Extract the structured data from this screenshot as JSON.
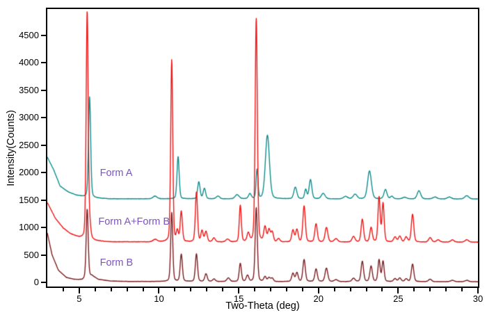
{
  "figure": {
    "background": "#ffffff",
    "axis_color": "#000000",
    "tick_label_color": "#000000"
  },
  "chart_data": {
    "type": "line",
    "title": "",
    "xlabel": "Two-Theta (deg)",
    "ylabel": "Intensity(Counts)",
    "xlim": [
      3,
      30
    ],
    "ylim": [
      -75,
      4975
    ],
    "x_major_ticks": [
      5,
      10,
      15,
      20,
      25,
      30
    ],
    "x_minor_step": 1,
    "y_major_ticks": [
      0,
      500,
      1000,
      1500,
      2000,
      2500,
      3000,
      3500,
      4000,
      4500
    ],
    "grid": false,
    "legend_position": "none",
    "annotations": [
      {
        "text": "Form A",
        "x": 6.3,
        "y": 1990,
        "color": "#7d53c1"
      },
      {
        "text": "Form A+Form B",
        "x": 6.2,
        "y": 1100,
        "color": "#7d53c1"
      },
      {
        "text": "Form B",
        "x": 6.3,
        "y": 355,
        "color": "#7d53c1"
      }
    ],
    "series": [
      {
        "name": "Form A",
        "color": "#0f8b8b",
        "line_width": 1.4,
        "noise": 5,
        "seed": 7,
        "background_points": [
          [
            3,
            2280
          ],
          [
            3.4,
            2050
          ],
          [
            3.8,
            1755
          ],
          [
            4.3,
            1650
          ],
          [
            4.8,
            1590
          ],
          [
            5.4,
            1552
          ],
          [
            6,
            1535
          ],
          [
            7,
            1522
          ],
          [
            30,
            1518
          ]
        ],
        "peaks": [
          [
            5.65,
            1835,
            0.16
          ],
          [
            9.75,
            50,
            0.3
          ],
          [
            11.2,
            770,
            0.16
          ],
          [
            12.5,
            310,
            0.18
          ],
          [
            12.85,
            190,
            0.18
          ],
          [
            13.7,
            50,
            0.25
          ],
          [
            14.9,
            75,
            0.3
          ],
          [
            15.7,
            90,
            0.2
          ],
          [
            16.15,
            530,
            0.14
          ],
          [
            16.8,
            1160,
            0.3
          ],
          [
            18.55,
            210,
            0.22
          ],
          [
            19.2,
            170,
            0.16
          ],
          [
            19.5,
            350,
            0.2
          ],
          [
            20.3,
            100,
            0.28
          ],
          [
            21.7,
            45,
            0.3
          ],
          [
            22.3,
            85,
            0.28
          ],
          [
            23.2,
            510,
            0.28
          ],
          [
            24.2,
            170,
            0.22
          ],
          [
            24.6,
            45,
            0.22
          ],
          [
            25.4,
            30,
            0.3
          ],
          [
            26.3,
            150,
            0.26
          ],
          [
            27.3,
            35,
            0.3
          ],
          [
            28.2,
            35,
            0.3
          ],
          [
            29.3,
            60,
            0.3
          ]
        ]
      },
      {
        "name": "Form A+Form B",
        "color": "#f01212",
        "line_width": 1.4,
        "noise": 5,
        "seed": 13,
        "background_points": [
          [
            3,
            1455
          ],
          [
            3.5,
            1170
          ],
          [
            4,
            990
          ],
          [
            4.5,
            880
          ],
          [
            5,
            815
          ],
          [
            5.5,
            780
          ],
          [
            6,
            755
          ],
          [
            7,
            740
          ],
          [
            30,
            733
          ]
        ],
        "peaks": [
          [
            5.5,
            4160,
            0.15
          ],
          [
            5.67,
            200,
            0.14
          ],
          [
            9.75,
            45,
            0.3
          ],
          [
            10.8,
            3310,
            0.15
          ],
          [
            11.15,
            190,
            0.15
          ],
          [
            11.4,
            545,
            0.16
          ],
          [
            12.35,
            905,
            0.16
          ],
          [
            12.7,
            200,
            0.16
          ],
          [
            12.95,
            185,
            0.18
          ],
          [
            13.45,
            70,
            0.2
          ],
          [
            14.3,
            50,
            0.25
          ],
          [
            15.1,
            665,
            0.15
          ],
          [
            15.6,
            150,
            0.18
          ],
          [
            16.1,
            4065,
            0.16
          ],
          [
            16.65,
            265,
            0.18
          ],
          [
            16.9,
            215,
            0.18
          ],
          [
            17.1,
            175,
            0.18
          ],
          [
            17.5,
            60,
            0.2
          ],
          [
            18.4,
            215,
            0.18
          ],
          [
            18.65,
            225,
            0.18
          ],
          [
            19.1,
            655,
            0.18
          ],
          [
            19.85,
            330,
            0.18
          ],
          [
            20.5,
            265,
            0.2
          ],
          [
            21.1,
            60,
            0.25
          ],
          [
            22.2,
            100,
            0.22
          ],
          [
            22.75,
            415,
            0.18
          ],
          [
            23.3,
            260,
            0.18
          ],
          [
            23.8,
            815,
            0.16
          ],
          [
            24.05,
            700,
            0.16
          ],
          [
            24.8,
            90,
            0.2
          ],
          [
            25.1,
            105,
            0.2
          ],
          [
            25.5,
            90,
            0.2
          ],
          [
            25.9,
            505,
            0.18
          ],
          [
            27.0,
            80,
            0.22
          ],
          [
            27.5,
            40,
            0.25
          ],
          [
            28.4,
            40,
            0.25
          ],
          [
            29.3,
            45,
            0.25
          ]
        ]
      },
      {
        "name": "Form B",
        "color": "#7b1b1e",
        "line_width": 1.4,
        "noise": 4,
        "seed": 29,
        "background_points": [
          [
            3,
            900
          ],
          [
            3.3,
            500
          ],
          [
            3.7,
            220
          ],
          [
            4.2,
            90
          ],
          [
            4.7,
            55
          ],
          [
            5.2,
            45
          ],
          [
            5.8,
            120
          ],
          [
            6.2,
            55
          ],
          [
            7,
            25
          ],
          [
            8,
            18
          ],
          [
            30,
            13
          ]
        ],
        "peaks": [
          [
            5.5,
            1255,
            0.15
          ],
          [
            10.8,
            1255,
            0.15
          ],
          [
            11.4,
            495,
            0.16
          ],
          [
            12.35,
            505,
            0.16
          ],
          [
            12.95,
            140,
            0.18
          ],
          [
            13.45,
            45,
            0.2
          ],
          [
            14.35,
            65,
            0.22
          ],
          [
            15.1,
            330,
            0.16
          ],
          [
            15.55,
            110,
            0.18
          ],
          [
            16.1,
            1345,
            0.16
          ],
          [
            16.65,
            85,
            0.18
          ],
          [
            16.9,
            70,
            0.18
          ],
          [
            17.1,
            60,
            0.18
          ],
          [
            18.4,
            150,
            0.18
          ],
          [
            18.65,
            160,
            0.18
          ],
          [
            19.1,
            400,
            0.18
          ],
          [
            19.85,
            230,
            0.18
          ],
          [
            20.5,
            245,
            0.2
          ],
          [
            21.1,
            35,
            0.25
          ],
          [
            22.2,
            60,
            0.22
          ],
          [
            22.75,
            370,
            0.18
          ],
          [
            23.3,
            280,
            0.18
          ],
          [
            23.8,
            395,
            0.16
          ],
          [
            24.05,
            370,
            0.16
          ],
          [
            24.8,
            55,
            0.2
          ],
          [
            25.1,
            65,
            0.2
          ],
          [
            25.5,
            50,
            0.2
          ],
          [
            25.9,
            320,
            0.18
          ],
          [
            27.0,
            45,
            0.22
          ],
          [
            28.4,
            25,
            0.25
          ],
          [
            29.3,
            25,
            0.25
          ]
        ]
      }
    ]
  }
}
